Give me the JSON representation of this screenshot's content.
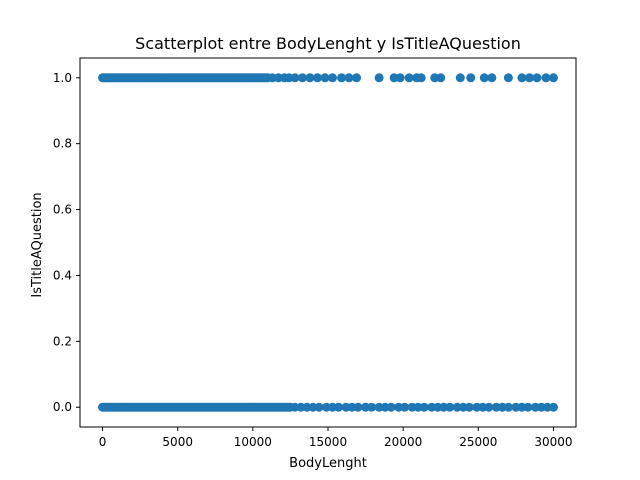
{
  "chart_data": {
    "type": "scatter",
    "title": "Scatterplot entre BodyLenght y IsTitleAQuestion",
    "xlabel": "BodyLenght",
    "ylabel": "IsTitleAQuestion",
    "xlim": [
      -1500,
      31500
    ],
    "ylim": [
      -0.06,
      1.06
    ],
    "xticks": [
      0,
      5000,
      10000,
      15000,
      20000,
      25000,
      30000
    ],
    "xtick_labels": [
      "0",
      "5000",
      "10000",
      "15000",
      "20000",
      "25000",
      "30000"
    ],
    "yticks": [
      0.0,
      0.2,
      0.4,
      0.6,
      0.8,
      1.0
    ],
    "ytick_labels": [
      "0.0",
      "0.2",
      "0.4",
      "0.6",
      "0.8",
      "1.0"
    ],
    "grid": false,
    "marker_color": "#1f77b4",
    "series": [
      {
        "name": "",
        "dense_ranges": [
          {
            "y": 1,
            "x_from": 0,
            "x_to": 11000
          },
          {
            "y": 0,
            "x_from": 0,
            "x_to": 12500
          }
        ],
        "points": [
          {
            "x": 11300,
            "y": 1
          },
          {
            "x": 11700,
            "y": 1
          },
          {
            "x": 12100,
            "y": 1
          },
          {
            "x": 12400,
            "y": 1
          },
          {
            "x": 12800,
            "y": 1
          },
          {
            "x": 13300,
            "y": 1
          },
          {
            "x": 13800,
            "y": 1
          },
          {
            "x": 14300,
            "y": 1
          },
          {
            "x": 14800,
            "y": 1
          },
          {
            "x": 15300,
            "y": 1
          },
          {
            "x": 15900,
            "y": 1
          },
          {
            "x": 16400,
            "y": 1
          },
          {
            "x": 16900,
            "y": 1
          },
          {
            "x": 18400,
            "y": 1
          },
          {
            "x": 19400,
            "y": 1
          },
          {
            "x": 19800,
            "y": 1
          },
          {
            "x": 20400,
            "y": 1
          },
          {
            "x": 20900,
            "y": 1
          },
          {
            "x": 21200,
            "y": 1
          },
          {
            "x": 22100,
            "y": 1
          },
          {
            "x": 22500,
            "y": 1
          },
          {
            "x": 23800,
            "y": 1
          },
          {
            "x": 24500,
            "y": 1
          },
          {
            "x": 25400,
            "y": 1
          },
          {
            "x": 25900,
            "y": 1
          },
          {
            "x": 27000,
            "y": 1
          },
          {
            "x": 27900,
            "y": 1
          },
          {
            "x": 28400,
            "y": 1
          },
          {
            "x": 28900,
            "y": 1
          },
          {
            "x": 29500,
            "y": 1
          },
          {
            "x": 30000,
            "y": 1
          },
          {
            "x": 12800,
            "y": 0
          },
          {
            "x": 13200,
            "y": 0
          },
          {
            "x": 13600,
            "y": 0
          },
          {
            "x": 14000,
            "y": 0
          },
          {
            "x": 14400,
            "y": 0
          },
          {
            "x": 14900,
            "y": 0
          },
          {
            "x": 15300,
            "y": 0
          },
          {
            "x": 15700,
            "y": 0
          },
          {
            "x": 16200,
            "y": 0
          },
          {
            "x": 16600,
            "y": 0
          },
          {
            "x": 17000,
            "y": 0
          },
          {
            "x": 17500,
            "y": 0
          },
          {
            "x": 17900,
            "y": 0
          },
          {
            "x": 18400,
            "y": 0
          },
          {
            "x": 18800,
            "y": 0
          },
          {
            "x": 19200,
            "y": 0
          },
          {
            "x": 19700,
            "y": 0
          },
          {
            "x": 20100,
            "y": 0
          },
          {
            "x": 20600,
            "y": 0
          },
          {
            "x": 21000,
            "y": 0
          },
          {
            "x": 21400,
            "y": 0
          },
          {
            "x": 21900,
            "y": 0
          },
          {
            "x": 22300,
            "y": 0
          },
          {
            "x": 22700,
            "y": 0
          },
          {
            "x": 23100,
            "y": 0
          },
          {
            "x": 23600,
            "y": 0
          },
          {
            "x": 24000,
            "y": 0
          },
          {
            "x": 24400,
            "y": 0
          },
          {
            "x": 24900,
            "y": 0
          },
          {
            "x": 25300,
            "y": 0
          },
          {
            "x": 25700,
            "y": 0
          },
          {
            "x": 26200,
            "y": 0
          },
          {
            "x": 26600,
            "y": 0
          },
          {
            "x": 27000,
            "y": 0
          },
          {
            "x": 27500,
            "y": 0
          },
          {
            "x": 27900,
            "y": 0
          },
          {
            "x": 28300,
            "y": 0
          },
          {
            "x": 28800,
            "y": 0
          },
          {
            "x": 29200,
            "y": 0
          },
          {
            "x": 29600,
            "y": 0
          },
          {
            "x": 30000,
            "y": 0
          }
        ]
      }
    ]
  }
}
